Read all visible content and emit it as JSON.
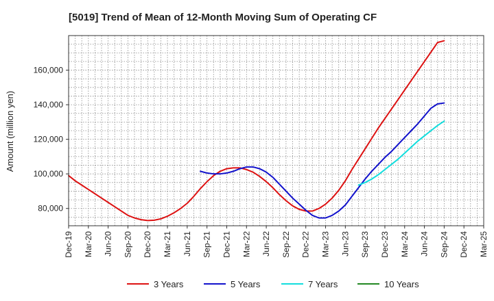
{
  "chart_data": {
    "type": "line",
    "title": "[5019]  Trend of Mean of 12-Month Moving Sum of Operating CF",
    "xlabel": "",
    "ylabel": "Amount (million yen)",
    "ylim": [
      70000,
      180000
    ],
    "y_ticks": [
      80000,
      100000,
      120000,
      140000,
      160000
    ],
    "y_tick_labels": [
      "80,000",
      "100,000",
      "120,000",
      "140,000",
      "160,000"
    ],
    "x_tick_labels": [
      "Dec-19",
      "Mar-20",
      "Jun-20",
      "Sep-20",
      "Dec-20",
      "Mar-21",
      "Jun-21",
      "Sep-21",
      "Dec-21",
      "Mar-22",
      "Jun-22",
      "Sep-22",
      "Dec-22",
      "Mar-23",
      "Jun-23",
      "Sep-23",
      "Dec-23",
      "Mar-24",
      "Jun-24",
      "Sep-24",
      "Dec-24",
      "Mar-25"
    ],
    "x_range_months": [
      0,
      63
    ],
    "grid": true,
    "legend_position": "bottom",
    "series": [
      {
        "name": "3 Years",
        "color": "#dd1111",
        "months": [
          0,
          1,
          2,
          3,
          4,
          5,
          6,
          7,
          8,
          9,
          10,
          11,
          12,
          13,
          14,
          15,
          16,
          17,
          18,
          19,
          20,
          21,
          22,
          23,
          24,
          25,
          26,
          27,
          28,
          29,
          30,
          31,
          32,
          33,
          34,
          35,
          36,
          37,
          38,
          39,
          40,
          41,
          42,
          43,
          44,
          45,
          46,
          47,
          48,
          49,
          50,
          51,
          52,
          53,
          54,
          55,
          56,
          57
        ],
        "values": [
          99000,
          96000,
          93500,
          91000,
          88500,
          86000,
          83500,
          81000,
          78500,
          76000,
          74500,
          73500,
          73000,
          73200,
          74000,
          75500,
          77500,
          80000,
          83000,
          87000,
          91500,
          95500,
          99000,
          101500,
          103000,
          103500,
          103500,
          102500,
          101000,
          98500,
          95500,
          92000,
          88000,
          84500,
          81500,
          79500,
          78500,
          78500,
          80000,
          82500,
          86000,
          90500,
          96000,
          102500,
          108500,
          114500,
          120500,
          126500,
          132000,
          137500,
          143000,
          148500,
          154000,
          159500,
          165000,
          170500,
          176000,
          177000
        ]
      },
      {
        "name": "5 Years",
        "color": "#1111cc",
        "months": [
          20,
          21,
          22,
          23,
          24,
          25,
          26,
          27,
          28,
          29,
          30,
          31,
          32,
          33,
          34,
          35,
          36,
          37,
          38,
          39,
          40,
          41,
          42,
          43,
          44,
          45,
          46,
          47,
          48,
          49,
          50,
          51,
          52,
          53,
          54,
          55,
          56,
          57
        ],
        "values": [
          101500,
          100500,
          100000,
          100000,
          100500,
          101500,
          103000,
          104000,
          104000,
          103000,
          101000,
          98000,
          94000,
          90000,
          86000,
          82500,
          79000,
          76000,
          74500,
          74500,
          76000,
          78500,
          82000,
          87000,
          92000,
          97000,
          101500,
          105500,
          109500,
          113000,
          117000,
          121000,
          125000,
          129000,
          133500,
          138000,
          140500,
          141000
        ]
      },
      {
        "name": "7 Years",
        "color": "#11dddd",
        "months": [
          44,
          45,
          46,
          47,
          48,
          49,
          50,
          51,
          52,
          53,
          54,
          55,
          56,
          57
        ],
        "values": [
          93500,
          95000,
          97000,
          99500,
          102500,
          105500,
          108500,
          112000,
          115500,
          119000,
          122000,
          125000,
          128000,
          130500
        ]
      },
      {
        "name": "10 Years",
        "color": "#228822",
        "months": [],
        "values": []
      }
    ]
  }
}
